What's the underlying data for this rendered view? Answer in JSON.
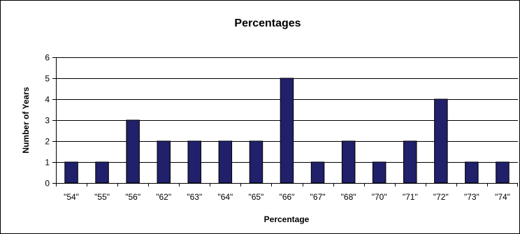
{
  "chart_data": {
    "type": "bar",
    "title": "Percentages",
    "xlabel": "Percentage",
    "ylabel": "Number of Years",
    "categories": [
      "\"54\"",
      "\"55\"",
      "\"56\"",
      "\"62\"",
      "\"63\"",
      "\"64\"",
      "\"65\"",
      "\"66\"",
      "\"67\"",
      "\"68\"",
      "\"70\"",
      "\"71\"",
      "\"72\"",
      "\"73\"",
      "\"74\""
    ],
    "values": [
      1,
      1,
      3,
      2,
      2,
      2,
      2,
      5,
      1,
      2,
      1,
      2,
      4,
      1,
      1
    ],
    "ylim": [
      0,
      6
    ],
    "yticks": [
      0,
      1,
      2,
      3,
      4,
      5,
      6
    ],
    "grid": true,
    "legend": "none",
    "colors": {
      "bar": "#20206b",
      "bar_edge": "#000000",
      "grid": "#000000",
      "frame": "#000000",
      "background": "#ffffff"
    }
  }
}
